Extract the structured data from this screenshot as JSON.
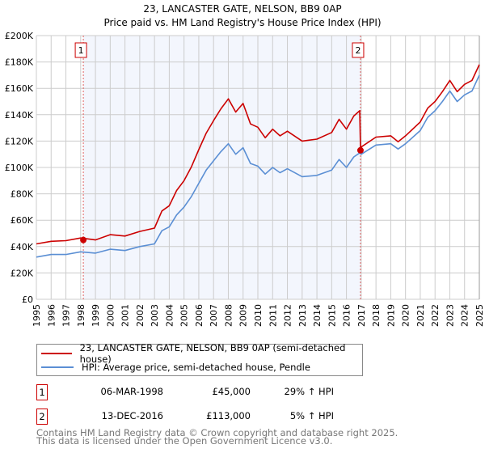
{
  "chart_data": {
    "type": "line",
    "title": "23, LANCASTER GATE, NELSON, BB9 0AP",
    "subtitle": "Price paid vs. HM Land Registry's House Price Index (HPI)",
    "xlim": [
      1995,
      2025
    ],
    "ylim": [
      0,
      200000
    ],
    "grid": true,
    "x_ticks": [
      "1995",
      "1996",
      "1997",
      "1998",
      "1999",
      "2000",
      "2001",
      "2002",
      "2003",
      "2004",
      "2005",
      "2006",
      "2007",
      "2008",
      "2009",
      "2010",
      "2011",
      "2012",
      "2013",
      "2014",
      "2015",
      "2016",
      "2017",
      "2018",
      "2019",
      "2020",
      "2021",
      "2022",
      "2023",
      "2024",
      "2025"
    ],
    "y_ticks": [
      {
        "v": 0,
        "label": "£0"
      },
      {
        "v": 20000,
        "label": "£20K"
      },
      {
        "v": 40000,
        "label": "£40K"
      },
      {
        "v": 60000,
        "label": "£60K"
      },
      {
        "v": 80000,
        "label": "£80K"
      },
      {
        "v": 100000,
        "label": "£100K"
      },
      {
        "v": 120000,
        "label": "£120K"
      },
      {
        "v": 140000,
        "label": "£140K"
      },
      {
        "v": 160000,
        "label": "£160K"
      },
      {
        "v": 180000,
        "label": "£180K"
      },
      {
        "v": 200000,
        "label": "£200K"
      }
    ],
    "shaded_range": [
      1998.18,
      2016.95
    ],
    "series": [
      {
        "name": "23, LANCASTER GATE, NELSON, BB9 0AP (semi-detached house)",
        "color": "#cc0000",
        "x": [
          1995,
          1996,
          1997,
          1998,
          1999,
          2000,
          2001,
          2002,
          2003,
          2003.5,
          2004,
          2004.5,
          2005,
          2005.5,
          2006,
          2006.5,
          2007,
          2007.5,
          2008,
          2008.5,
          2009,
          2009.5,
          2010,
          2010.5,
          2011,
          2011.5,
          2012,
          2013,
          2014,
          2015,
          2015.5,
          2016,
          2016.5,
          2016.9,
          2016.95,
          2017,
          2018,
          2019,
          2019.5,
          2020,
          2021,
          2021.5,
          2022,
          2022.5,
          2023,
          2023.5,
          2024,
          2024.5,
          2025
        ],
        "y": [
          42000,
          44000,
          44500,
          46500,
          45000,
          49000,
          48000,
          51500,
          54000,
          67000,
          71000,
          82500,
          90000,
          100500,
          113500,
          126000,
          135500,
          144500,
          152000,
          142000,
          148500,
          133000,
          130500,
          122500,
          129000,
          124000,
          127500,
          120000,
          121500,
          126500,
          136500,
          129000,
          139000,
          143000,
          113000,
          115500,
          123000,
          124000,
          119500,
          124000,
          134500,
          145000,
          150000,
          157500,
          166000,
          157500,
          163000,
          166000,
          178000
        ]
      },
      {
        "name": "HPI: Average price, semi-detached house, Pendle",
        "color": "#5b8fd4",
        "x": [
          1995,
          1996,
          1997,
          1998,
          1999,
          2000,
          2001,
          2002,
          2003,
          2003.5,
          2004,
          2004.5,
          2005,
          2005.5,
          2006,
          2006.5,
          2007,
          2007.5,
          2008,
          2008.5,
          2009,
          2009.5,
          2010,
          2010.5,
          2011,
          2011.5,
          2012,
          2013,
          2014,
          2015,
          2015.5,
          2016,
          2016.5,
          2016.9,
          2017,
          2018,
          2019,
          2019.5,
          2020,
          2021,
          2021.5,
          2022,
          2022.5,
          2023,
          2023.5,
          2024,
          2024.5,
          2025
        ],
        "y": [
          32000,
          34000,
          34000,
          36000,
          35000,
          38000,
          37000,
          40000,
          42000,
          52000,
          55000,
          64000,
          70000,
          78000,
          88000,
          98000,
          105000,
          112000,
          118000,
          110000,
          115000,
          103000,
          101000,
          95000,
          100000,
          96000,
          99000,
          93000,
          94000,
          98000,
          106000,
          100000,
          108000,
          111000,
          110000,
          117000,
          118000,
          114000,
          118000,
          128000,
          138000,
          143000,
          150000,
          158000,
          150000,
          155000,
          158000,
          170000
        ]
      }
    ],
    "sales": [
      {
        "num": "1",
        "x": 1998.18,
        "y": 45000,
        "date": "06-MAR-1998",
        "price": "£45,000",
        "hpi": "29% ↑ HPI"
      },
      {
        "num": "2",
        "x": 2016.95,
        "y": 113000,
        "date": "13-DEC-2016",
        "price": "£113,000",
        "hpi": "5% ↑ HPI"
      }
    ]
  },
  "footer": {
    "line1": "Contains HM Land Registry data © Crown copyright and database right 2025.",
    "line2": "This data is licensed under the Open Government Licence v3.0."
  }
}
